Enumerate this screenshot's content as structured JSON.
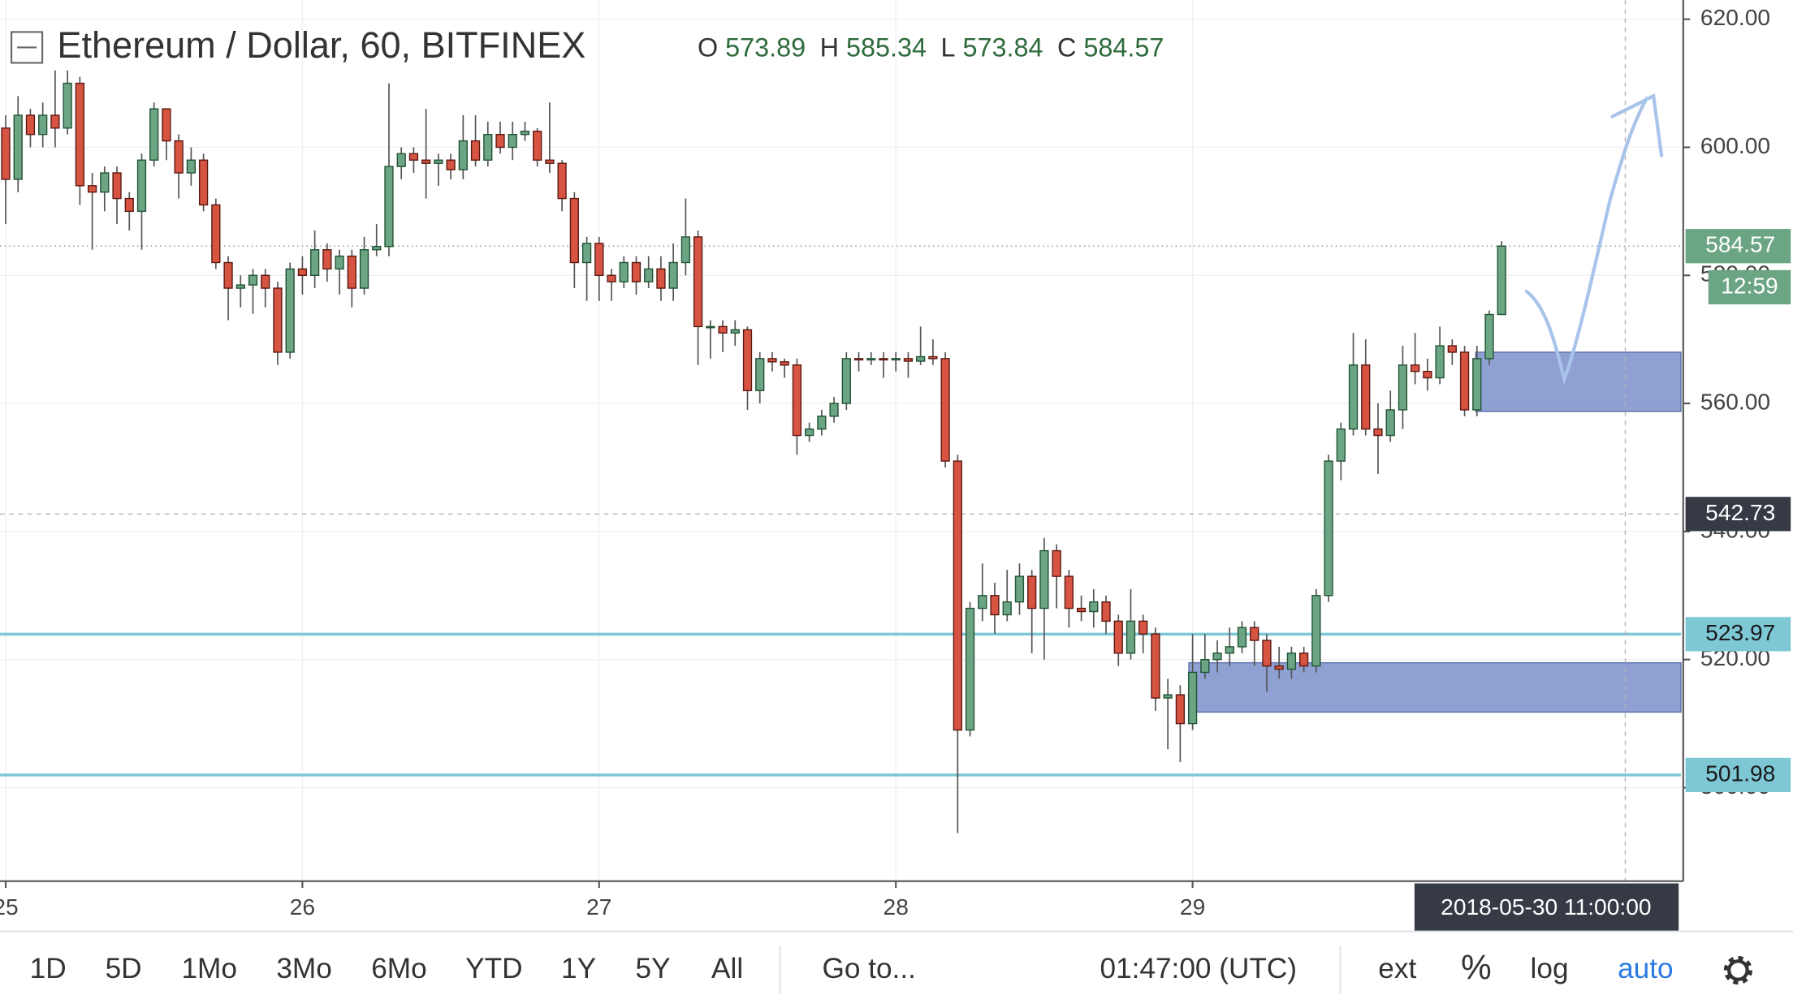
{
  "chart_data": {
    "type": "candlestick",
    "title": "Ethereum / Dollar, 60, BITFINEX",
    "ohlc_labels": [
      "O",
      "H",
      "L",
      "C"
    ],
    "x": [
      0,
      1,
      2,
      3,
      4,
      5,
      6,
      7,
      8,
      9,
      10,
      11,
      12,
      13,
      14,
      15,
      16,
      17,
      18,
      19,
      20,
      21,
      22,
      23,
      24,
      25,
      26,
      27,
      28,
      29,
      30,
      31,
      32,
      33,
      34,
      35,
      36,
      37,
      38,
      39,
      40,
      41,
      42,
      43,
      44,
      45,
      46,
      47,
      48,
      49,
      50,
      51,
      52,
      53,
      54,
      55,
      56,
      57,
      58,
      59,
      60,
      61,
      62,
      63,
      64,
      65,
      66,
      67,
      68,
      69,
      70,
      71,
      72,
      73,
      74,
      75,
      76,
      77,
      78,
      79,
      80,
      81,
      82,
      83,
      84,
      85,
      86,
      87,
      88,
      89,
      90,
      91,
      92,
      93,
      94,
      95,
      96,
      97,
      98,
      99,
      100,
      101,
      102,
      103,
      104,
      105,
      106,
      107,
      108,
      109,
      110,
      111,
      112,
      113,
      114,
      115,
      116,
      117,
      118,
      119,
      120,
      121
    ],
    "open": [
      603,
      595,
      605,
      602,
      605,
      603,
      610,
      594,
      593,
      596,
      592,
      590,
      598,
      606,
      601,
      596,
      598,
      591,
      582,
      578,
      578.5,
      580,
      578,
      568,
      581,
      580,
      584,
      581,
      583,
      578,
      584,
      584.5,
      597,
      599,
      598,
      597.5,
      598,
      596.5,
      601,
      598,
      602,
      600,
      602,
      602.5,
      598,
      597.5,
      592,
      582,
      585,
      580,
      579,
      582,
      579,
      581,
      578,
      582,
      586,
      572,
      572,
      571,
      571.5,
      562,
      567,
      566.5,
      566,
      555,
      556,
      558,
      560,
      567,
      566.8,
      567,
      566.8,
      567,
      566.6,
      567.3,
      567,
      551,
      509,
      528,
      530,
      527,
      529,
      533,
      528,
      537,
      533,
      528,
      527.5,
      529,
      526,
      521,
      526,
      524,
      514,
      514.5,
      510,
      518,
      520,
      521,
      522,
      525,
      523,
      519,
      518.5,
      521,
      519,
      530,
      551,
      556,
      566,
      556,
      555,
      559,
      566,
      565,
      564,
      569,
      568,
      559,
      567,
      573.89
    ],
    "high": [
      605,
      608,
      606,
      607,
      612,
      612,
      611,
      596,
      597,
      597,
      593,
      599,
      607,
      606,
      602,
      600,
      599,
      592,
      583,
      580,
      581,
      581,
      579,
      582,
      583,
      587,
      585,
      584,
      584,
      586,
      588,
      610,
      600,
      600,
      606,
      599,
      599,
      605,
      605,
      604,
      604,
      604,
      604,
      603,
      607,
      598,
      593,
      586,
      586,
      581,
      583,
      583,
      583,
      583,
      585,
      592,
      587,
      573,
      573,
      573,
      572,
      568,
      568,
      567,
      567,
      557,
      559,
      561,
      568,
      568,
      568,
      568,
      568,
      568,
      572,
      570,
      568,
      552,
      529,
      535,
      532,
      534,
      535,
      534,
      539,
      538,
      534,
      530,
      531,
      530,
      527,
      531,
      527,
      525,
      517,
      516,
      524,
      524,
      523,
      525,
      526,
      526,
      524,
      522,
      522,
      522,
      531,
      552,
      557,
      571,
      570,
      560,
      562,
      569,
      571,
      567,
      572,
      570,
      569,
      569,
      574.5,
      585.34
    ],
    "low": [
      588,
      593,
      600,
      600,
      600,
      602,
      591,
      584,
      590,
      588,
      587,
      584,
      597,
      598,
      592,
      594,
      590,
      581,
      573,
      575,
      574,
      575,
      566,
      567,
      577,
      578,
      579,
      577,
      575,
      577,
      583,
      583,
      595,
      596,
      592,
      594,
      595,
      595,
      597,
      597,
      599,
      598,
      601,
      597,
      596,
      590,
      578,
      576,
      576,
      576,
      578,
      577,
      578,
      576,
      576,
      580,
      566,
      567,
      568,
      569,
      559,
      560,
      565,
      564,
      552,
      554,
      555,
      557,
      559,
      565,
      566,
      564,
      565,
      564,
      566,
      566,
      550,
      492.9,
      508,
      526,
      524,
      526,
      527,
      521,
      520,
      528,
      525,
      526,
      525,
      524,
      519,
      520,
      521,
      512,
      506,
      504,
      509,
      517,
      518,
      519,
      521,
      519,
      515,
      517,
      517,
      518,
      518,
      529,
      548,
      555,
      555,
      549,
      554,
      556,
      563,
      562,
      563,
      566,
      558,
      558,
      566,
      573.84
    ],
    "close": [
      595,
      605,
      602,
      605,
      603,
      610,
      594,
      593,
      596,
      592,
      590,
      598,
      606,
      601,
      596,
      598,
      591,
      582,
      578,
      578.5,
      580,
      578,
      568,
      581,
      580,
      584,
      581,
      583,
      578,
      584,
      584.5,
      597,
      599,
      598,
      597.5,
      598,
      596.5,
      601,
      598,
      602,
      600,
      602,
      602.5,
      598,
      597.5,
      592,
      582,
      585,
      580,
      579,
      582,
      579,
      581,
      578,
      582,
      586,
      572,
      572,
      571,
      571.5,
      562,
      567,
      566.5,
      566,
      555,
      556,
      558,
      560,
      567,
      566.8,
      567,
      566.8,
      567,
      566.6,
      567.3,
      567,
      551,
      509,
      528,
      530,
      527,
      529,
      533,
      528,
      537,
      533,
      528,
      527.5,
      529,
      526,
      521,
      526,
      524,
      514,
      514.5,
      510,
      518,
      520,
      521,
      522,
      525,
      523,
      519,
      518.5,
      521,
      519,
      530,
      551,
      556,
      566,
      556,
      555,
      559,
      566,
      565,
      564,
      569,
      568,
      559,
      567,
      573.89,
      584.57
    ],
    "up_color": "#6ba583",
    "down_color": "#d75442",
    "xlim": [
      -0.46,
      135.5
    ],
    "xticks": [
      {
        "value": 0,
        "label": "25"
      },
      {
        "value": 24,
        "label": "26"
      },
      {
        "value": 48,
        "label": "27"
      },
      {
        "value": 72,
        "label": "28"
      },
      {
        "value": 96,
        "label": "29"
      }
    ],
    "ylim": [
      485.4,
      623.0
    ],
    "yticks": [
      {
        "value": 500,
        "label": "500.00"
      },
      {
        "value": 520,
        "label": "520.00"
      },
      {
        "value": 540,
        "label": "540.00"
      },
      {
        "value": 560,
        "label": "560.00"
      },
      {
        "value": 580,
        "label": "580.00"
      },
      {
        "value": 600,
        "label": "600.00"
      },
      {
        "value": 620,
        "label": "620.00"
      }
    ],
    "grid": true,
    "horizontal_lines": [
      {
        "value": 523.97,
        "color": "#7ec8d6"
      },
      {
        "value": 501.98,
        "color": "#7ec8d6"
      }
    ],
    "zones": [
      {
        "x0": 118.9,
        "y0": 558.75,
        "y1": 568.0,
        "color": "#7b8fcb"
      },
      {
        "x0": 95.7,
        "y0": 511.8,
        "y1": 519.5,
        "color": "#7b8fcb"
      }
    ],
    "countdown": "12:59",
    "crosshair": {
      "x": 131,
      "x_label": "2018-05-30 11:00:00",
      "y": 542.73
    }
  },
  "toolbar": {
    "ranges": [
      "1D",
      "5D",
      "1Mo",
      "3Mo",
      "6Mo",
      "YTD",
      "1Y",
      "5Y",
      "All"
    ],
    "goto": "Go to...",
    "clock": "01:47:00 (UTC)",
    "options": [
      "ext",
      "%",
      "log",
      "auto"
    ]
  }
}
